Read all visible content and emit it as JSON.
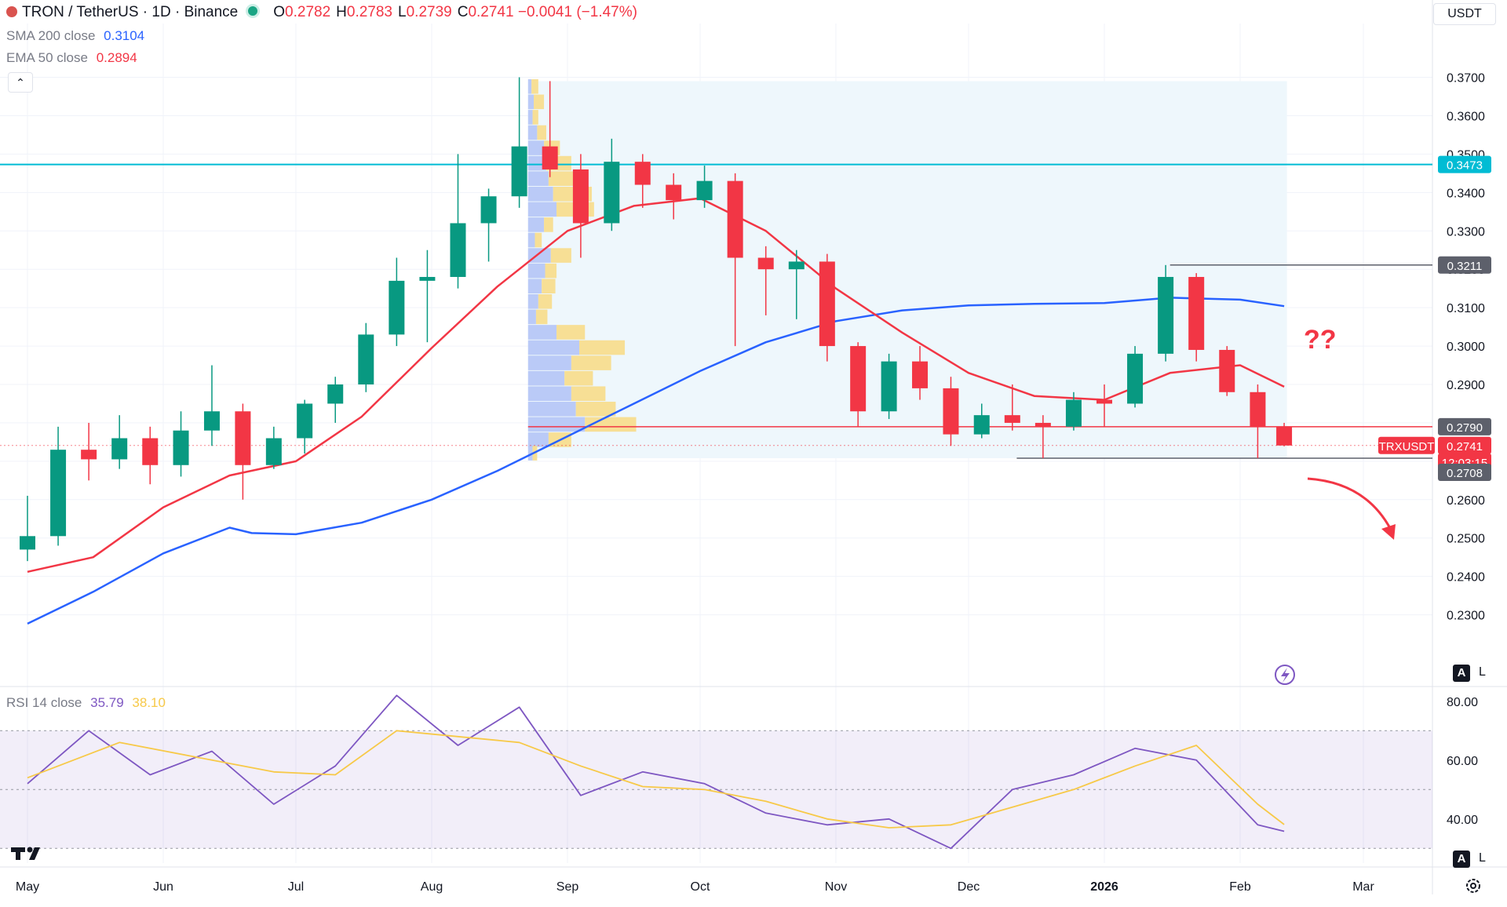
{
  "header": {
    "symbol": "TRON / TetherUS · 1D · Binance",
    "o_label": "O",
    "o": "0.2782",
    "h_label": "H",
    "h": "0.2783",
    "l_label": "L",
    "l": "0.2739",
    "c_label": "C",
    "c": "0.2741",
    "change": "−0.0041 (−1.47%)"
  },
  "indicators": {
    "sma_label": "SMA 200 close",
    "sma_value": "0.3104",
    "ema_label": "EMA 50 close",
    "ema_value": "0.2894",
    "rsi_label": "RSI 14 close",
    "rsi_value": "35.79",
    "rsi_ma_value": "38.10"
  },
  "toolbar": {
    "currency": "USDT",
    "collapse_icon": "chevron-up-icon",
    "auto_label": "A",
    "log_label": "L",
    "settings_icon": "gear-icon",
    "lightning_icon": "lightning-icon",
    "logo_icon": "tradingview-logo-icon"
  },
  "annotations": {
    "question": "??"
  },
  "colors": {
    "up": "#089981",
    "down": "#f23645",
    "sma": "#2962ff",
    "ema": "#f23645",
    "rsi": "#7e57c2",
    "rsi_ma": "#f7c948",
    "resistance": "#00bcd4",
    "vp_up": "#b6c7f7",
    "vp_down": "#f7dd8f",
    "vp_zone": "#eef7fc"
  },
  "chart_data": [
    {
      "type": "candlestick",
      "title": "TRON / TetherUS · 1D · Binance",
      "price_axis_ticks": [
        "0.2300",
        "0.2400",
        "0.2500",
        "0.2600",
        "0.2700",
        "0.2800",
        "0.2900",
        "0.3000",
        "0.3100",
        "0.3200",
        "0.3300",
        "0.3400",
        "0.3500",
        "0.3600",
        "0.3700"
      ],
      "ylim": [
        0.2195,
        0.384
      ],
      "time_axis_ticks": [
        "May",
        "Jun",
        "Jul",
        "Aug",
        "Sep",
        "Oct",
        "Nov",
        "Dec",
        "2026",
        "Feb",
        "Mar"
      ],
      "price_labels": [
        {
          "text": "0.3473",
          "value": 0.3473,
          "kind": "resistance"
        },
        {
          "text": "0.3211",
          "value": 0.3211,
          "kind": "swing-high"
        },
        {
          "text": "0.2790",
          "value": 0.279,
          "kind": "poc"
        },
        {
          "text": "TRXUSDT",
          "value": 0.2741,
          "kind": "symbol"
        },
        {
          "text": "0.2741",
          "value": 0.2741,
          "kind": "last"
        },
        {
          "text": "12:03:15",
          "value": 0.2741,
          "kind": "countdown"
        },
        {
          "text": "0.2708",
          "value": 0.2708,
          "kind": "swing-low"
        }
      ],
      "series": [
        {
          "name": "SMA 200 close",
          "type": "line",
          "points": [
            [
              "May 01",
              0.2277
            ],
            [
              "May 16",
              0.236
            ],
            [
              "Jun 01",
              0.246
            ],
            [
              "Jun 16",
              0.2527
            ],
            [
              "Jun 21",
              0.2513
            ],
            [
              "Jul 01",
              0.251
            ],
            [
              "Jul 16",
              0.254
            ],
            [
              "Aug 01",
              0.26
            ],
            [
              "Aug 16",
              0.2675
            ],
            [
              "Sep 01",
              0.2765
            ],
            [
              "Sep 16",
              0.285
            ],
            [
              "Oct 01",
              0.2935
            ],
            [
              "Oct 16",
              0.301
            ],
            [
              "Nov 01",
              0.3065
            ],
            [
              "Nov 16",
              0.3093
            ],
            [
              "Dec 01",
              0.3106
            ],
            [
              "Dec 16",
              0.311
            ],
            [
              "Jan 01",
              0.3112
            ],
            [
              "Jan 16",
              0.3126
            ],
            [
              "Feb 01",
              0.3121
            ],
            [
              "Feb 11",
              0.3104
            ]
          ]
        },
        {
          "name": "EMA 50 close",
          "type": "line",
          "points": [
            [
              "May 01",
              0.2412
            ],
            [
              "May 16",
              0.245
            ],
            [
              "Jun 01",
              0.258
            ],
            [
              "Jun 16",
              0.2663
            ],
            [
              "Jul 01",
              0.27
            ],
            [
              "Jul 16",
              0.2816
            ],
            [
              "Aug 01",
              0.2995
            ],
            [
              "Aug 16",
              0.3155
            ],
            [
              "Sep 01",
              0.33
            ],
            [
              "Sep 16",
              0.3365
            ],
            [
              "Oct 01",
              0.3385
            ],
            [
              "Oct 16",
              0.33
            ],
            [
              "Nov 01",
              0.315
            ],
            [
              "Nov 16",
              0.3035
            ],
            [
              "Dec 01",
              0.293
            ],
            [
              "Dec 16",
              0.287
            ],
            [
              "Jan 01",
              0.286
            ],
            [
              "Jan 16",
              0.293
            ],
            [
              "Feb 01",
              0.295
            ],
            [
              "Feb 11",
              0.2894
            ]
          ]
        }
      ],
      "candles": [
        [
          "May 01",
          0.247,
          0.261,
          0.244,
          0.2505
        ],
        [
          "May 08",
          0.2505,
          0.279,
          0.248,
          0.273
        ],
        [
          "May 15",
          0.273,
          0.28,
          0.265,
          0.2705
        ],
        [
          "May 22",
          0.2705,
          0.282,
          0.268,
          0.276
        ],
        [
          "May 29",
          0.276,
          0.279,
          0.264,
          0.269
        ],
        [
          "Jun 05",
          0.269,
          0.283,
          0.266,
          0.278
        ],
        [
          "Jun 12",
          0.278,
          0.295,
          0.274,
          0.283
        ],
        [
          "Jun 19",
          0.283,
          0.285,
          0.26,
          0.269
        ],
        [
          "Jun 26",
          0.269,
          0.279,
          0.268,
          0.276
        ],
        [
          "Jul 03",
          0.276,
          0.286,
          0.272,
          0.285
        ],
        [
          "Jul 10",
          0.285,
          0.292,
          0.28,
          0.29
        ],
        [
          "Jul 17",
          0.29,
          0.306,
          0.288,
          0.303
        ],
        [
          "Jul 24",
          0.303,
          0.323,
          0.3,
          0.317
        ],
        [
          "Jul 31",
          0.317,
          0.325,
          0.301,
          0.318
        ],
        [
          "Aug 07",
          0.318,
          0.35,
          0.315,
          0.332
        ],
        [
          "Aug 14",
          0.332,
          0.341,
          0.322,
          0.339
        ],
        [
          "Aug 21",
          0.339,
          0.37,
          0.336,
          0.352
        ],
        [
          "Aug 28",
          0.352,
          0.369,
          0.344,
          0.346
        ],
        [
          "Sep 04",
          0.346,
          0.35,
          0.323,
          0.332
        ],
        [
          "Sep 11",
          0.332,
          0.354,
          0.33,
          0.348
        ],
        [
          "Sep 18",
          0.348,
          0.35,
          0.336,
          0.342
        ],
        [
          "Sep 25",
          0.342,
          0.345,
          0.333,
          0.338
        ],
        [
          "Oct 02",
          0.338,
          0.347,
          0.336,
          0.343
        ],
        [
          "Oct 09",
          0.343,
          0.345,
          0.3,
          0.323
        ],
        [
          "Oct 16",
          0.323,
          0.326,
          0.308,
          0.32
        ],
        [
          "Oct 23",
          0.32,
          0.325,
          0.307,
          0.322
        ],
        [
          "Oct 30",
          0.322,
          0.324,
          0.296,
          0.3
        ],
        [
          "Nov 06",
          0.3,
          0.301,
          0.279,
          0.283
        ],
        [
          "Nov 13",
          0.283,
          0.298,
          0.281,
          0.296
        ],
        [
          "Nov 20",
          0.296,
          0.3,
          0.286,
          0.289
        ],
        [
          "Nov 27",
          0.289,
          0.292,
          0.274,
          0.277
        ],
        [
          "Dec 04",
          0.277,
          0.285,
          0.276,
          0.282
        ],
        [
          "Dec 11",
          0.282,
          0.29,
          0.278,
          0.28
        ],
        [
          "Dec 18",
          0.28,
          0.282,
          0.2708,
          0.279
        ],
        [
          "Dec 25",
          0.279,
          0.288,
          0.278,
          0.286
        ],
        [
          "Jan 01",
          0.286,
          0.29,
          0.279,
          0.285
        ],
        [
          "Jan 08",
          0.285,
          0.3,
          0.284,
          0.298
        ],
        [
          "Jan 15",
          0.298,
          0.3211,
          0.296,
          0.318
        ],
        [
          "Jan 22",
          0.318,
          0.319,
          0.296,
          0.299
        ],
        [
          "Jan 29",
          0.299,
          0.3,
          0.287,
          0.288
        ],
        [
          "Feb 05",
          0.288,
          0.29,
          0.2708,
          0.279
        ],
        [
          "Feb 11",
          0.279,
          0.28,
          0.2739,
          0.2741
        ]
      ],
      "volume_profile": {
        "range": [
          0.2708,
          0.369
        ],
        "poc": 0.279,
        "rows": [
          {
            "price": 0.3675,
            "up": 3,
            "down": 6
          },
          {
            "price": 0.3635,
            "up": 5,
            "down": 9
          },
          {
            "price": 0.3595,
            "up": 4,
            "down": 5
          },
          {
            "price": 0.3555,
            "up": 8,
            "down": 8
          },
          {
            "price": 0.3515,
            "up": 14,
            "down": 14
          },
          {
            "price": 0.3475,
            "up": 16,
            "down": 22
          },
          {
            "price": 0.3435,
            "up": 18,
            "down": 28
          },
          {
            "price": 0.3395,
            "up": 22,
            "down": 34
          },
          {
            "price": 0.3355,
            "up": 25,
            "down": 33
          },
          {
            "price": 0.3315,
            "up": 14,
            "down": 8
          },
          {
            "price": 0.3275,
            "up": 6,
            "down": 6
          },
          {
            "price": 0.3235,
            "up": 20,
            "down": 18
          },
          {
            "price": 0.3195,
            "up": 15,
            "down": 10
          },
          {
            "price": 0.3155,
            "up": 12,
            "down": 12
          },
          {
            "price": 0.3115,
            "up": 9,
            "down": 12
          },
          {
            "price": 0.3075,
            "up": 7,
            "down": 10
          },
          {
            "price": 0.3035,
            "up": 25,
            "down": 25
          },
          {
            "price": 0.2995,
            "up": 45,
            "down": 40
          },
          {
            "price": 0.2955,
            "up": 38,
            "down": 35
          },
          {
            "price": 0.2915,
            "up": 32,
            "down": 25
          },
          {
            "price": 0.2875,
            "up": 38,
            "down": 30
          },
          {
            "price": 0.2835,
            "up": 42,
            "down": 35
          },
          {
            "price": 0.2795,
            "up": 50,
            "down": 45
          },
          {
            "price": 0.2755,
            "up": 18,
            "down": 20
          },
          {
            "price": 0.272,
            "up": 4,
            "down": 4
          }
        ]
      }
    },
    {
      "type": "line",
      "title": "RSI 14 close",
      "axis_ticks": [
        "40.00",
        "60.00",
        "80.00"
      ],
      "ylim": [
        25,
        85
      ],
      "bands": {
        "upper": 70,
        "middle": 50,
        "lower": 30
      },
      "series": [
        {
          "name": "RSI",
          "points": [
            [
              "May 01",
              52
            ],
            [
              "May 15",
              70
            ],
            [
              "May 29",
              55
            ],
            [
              "Jun 12",
              63
            ],
            [
              "Jun 26",
              45
            ],
            [
              "Jul 10",
              58
            ],
            [
              "Jul 24",
              82
            ],
            [
              "Aug 07",
              65
            ],
            [
              "Aug 21",
              78
            ],
            [
              "Sep 04",
              48
            ],
            [
              "Sep 18",
              56
            ],
            [
              "Oct 02",
              52
            ],
            [
              "Oct 16",
              42
            ],
            [
              "Oct 30",
              38
            ],
            [
              "Nov 13",
              40
            ],
            [
              "Nov 27",
              30
            ],
            [
              "Dec 11",
              50
            ],
            [
              "Dec 25",
              55
            ],
            [
              "Jan 08",
              64
            ],
            [
              "Jan 22",
              60
            ],
            [
              "Feb 05",
              38
            ],
            [
              "Feb 11",
              35.79
            ]
          ]
        },
        {
          "name": "RSI MA",
          "points": [
            [
              "May 01",
              54
            ],
            [
              "May 22",
              66
            ],
            [
              "Jun 12",
              60
            ],
            [
              "Jun 26",
              56
            ],
            [
              "Jul 10",
              55
            ],
            [
              "Jul 24",
              70
            ],
            [
              "Aug 07",
              68
            ],
            [
              "Aug 21",
              66
            ],
            [
              "Sep 04",
              58
            ],
            [
              "Sep 18",
              51
            ],
            [
              "Oct 02",
              50
            ],
            [
              "Oct 16",
              46
            ],
            [
              "Oct 30",
              40
            ],
            [
              "Nov 13",
              37
            ],
            [
              "Nov 27",
              38
            ],
            [
              "Dec 11",
              44
            ],
            [
              "Dec 25",
              50
            ],
            [
              "Jan 08",
              58
            ],
            [
              "Jan 22",
              65
            ],
            [
              "Feb 05",
              45
            ],
            [
              "Feb 11",
              38.1
            ]
          ]
        }
      ]
    }
  ]
}
